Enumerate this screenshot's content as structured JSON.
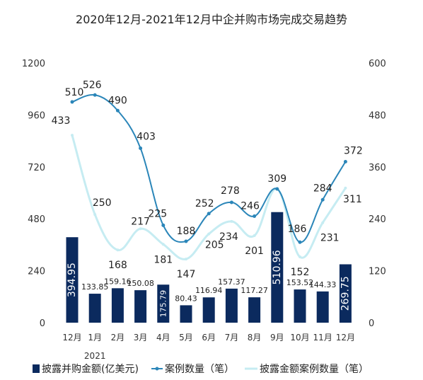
{
  "chart_data": {
    "type": "bar",
    "title": "2020年12月-2021年12月中企并购市场完成交易趋势",
    "categories": [
      "12月",
      "1月",
      "2月",
      "3月",
      "4月",
      "5月",
      "6月",
      "7月",
      "8月",
      "9月",
      "10月",
      "11月",
      "12月"
    ],
    "category_note": "2021",
    "y_left": {
      "min": 0,
      "max": 1200,
      "ticks": [
        0,
        240,
        480,
        720,
        960,
        1200
      ]
    },
    "y_right": {
      "min": 0,
      "max": 600,
      "ticks": [
        0,
        120,
        240,
        360,
        480,
        600
      ]
    },
    "series": [
      {
        "name": "披露并购金额(亿美元)",
        "type": "bar",
        "axis": "left",
        "color": "#0b2a5e",
        "values": [
          394.95,
          133.85,
          159.16,
          150.08,
          175.79,
          80.43,
          116.94,
          157.37,
          117.27,
          510.96,
          153.52,
          144.33,
          269.75
        ],
        "labels": [
          "394.95",
          "133.85",
          "159.16",
          "150.08",
          "175.79",
          "80.43",
          "116.94",
          "157.37",
          "117.27",
          "510.96",
          "153.52",
          "144.33",
          "269.75"
        ]
      },
      {
        "name": "案例数量（笔）",
        "type": "line",
        "axis": "right",
        "color": "#2b86b9",
        "values": [
          510,
          526,
          490,
          403,
          225,
          188,
          252,
          278,
          246,
          309,
          186,
          284,
          372
        ]
      },
      {
        "name": "披露金额案例数量（笔）",
        "type": "line",
        "axis": "right",
        "color": "#c6ecf2",
        "values": [
          433,
          250,
          168,
          217,
          181,
          147,
          205,
          234,
          201,
          309,
          152,
          231,
          311
        ]
      }
    ],
    "legend_position": "bottom",
    "grid": false
  }
}
